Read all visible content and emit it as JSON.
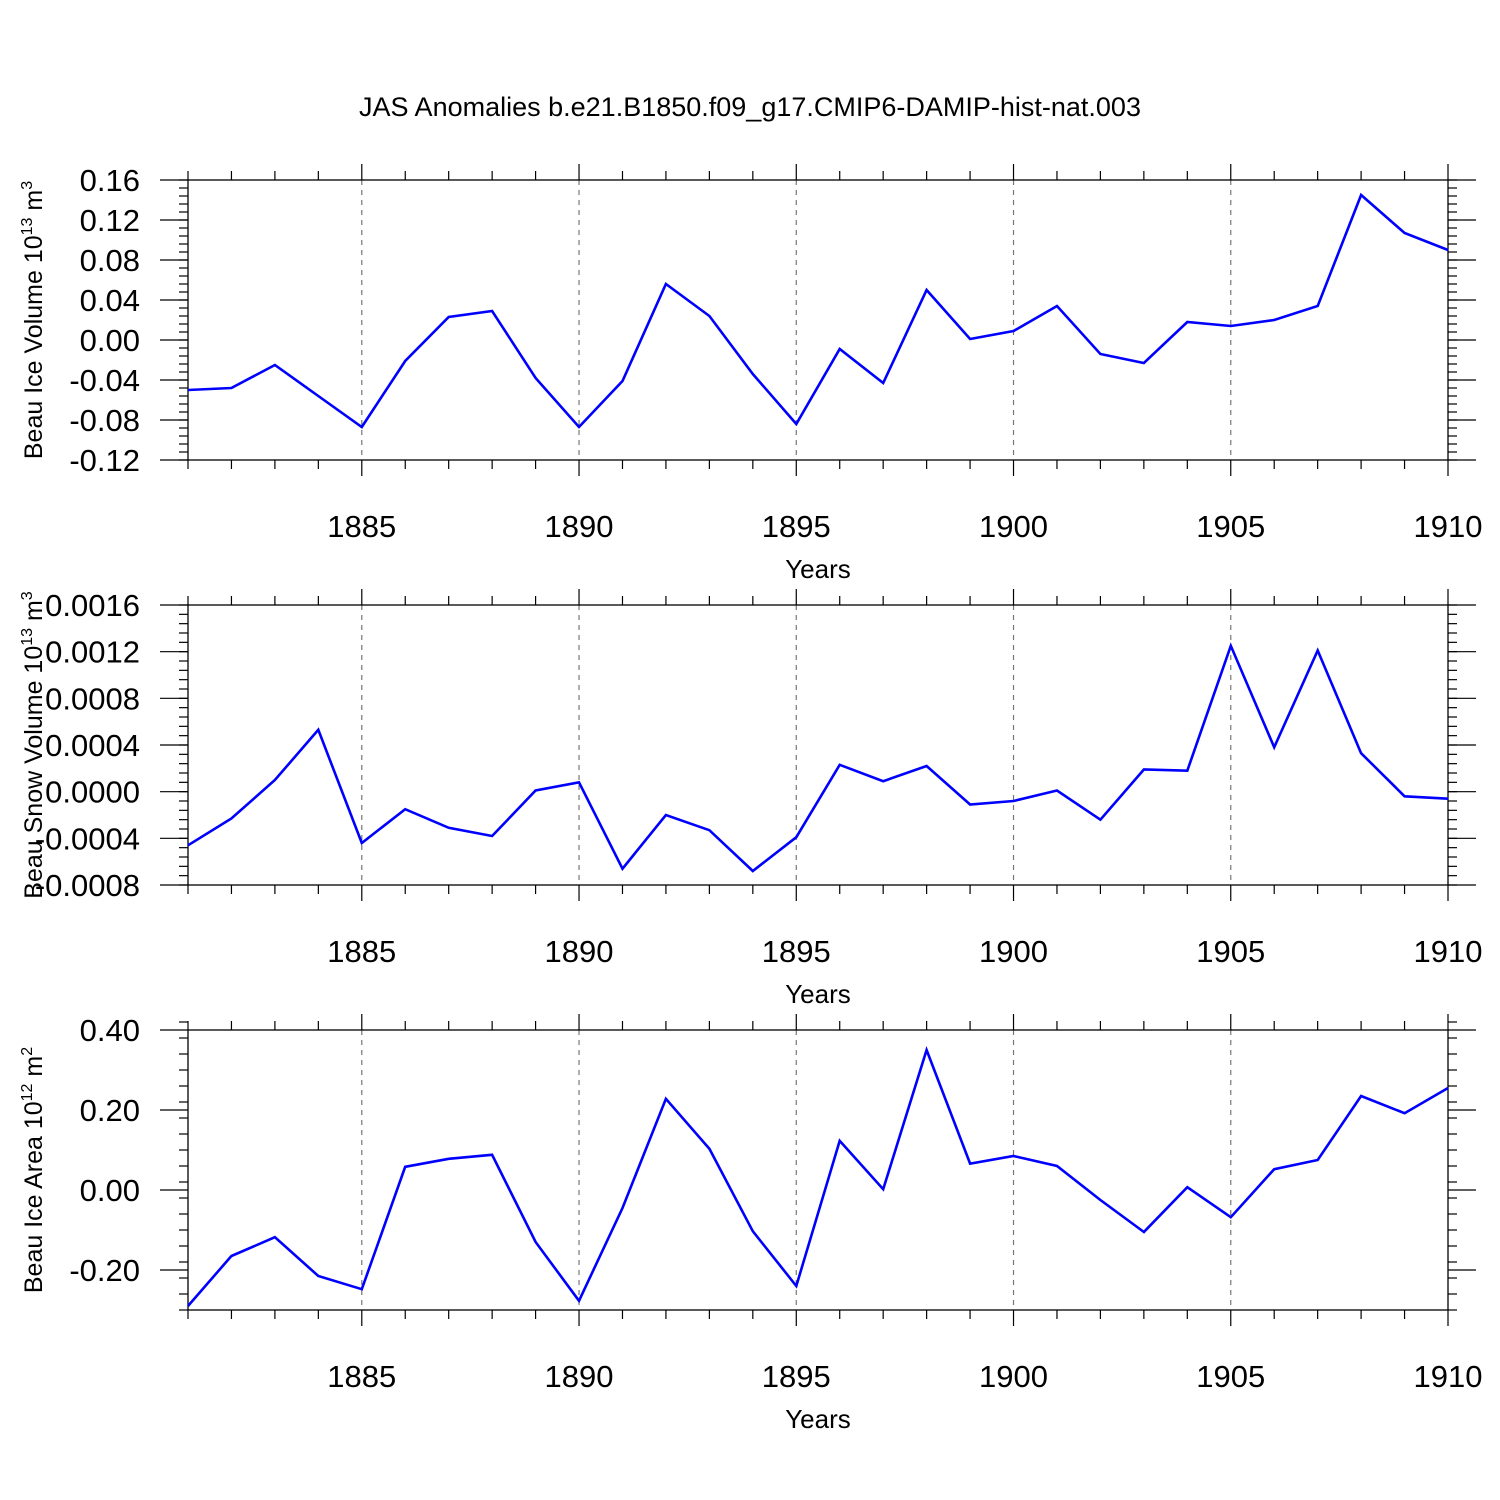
{
  "title": "JAS Anomalies b.e21.B1850.f09_g17.CMIP6-DAMIP-hist-nat.003",
  "chart_data": [
    {
      "type": "line",
      "id": "ice-volume",
      "ylabel_main": "Beau Ice Volume 10",
      "ylabel_exp": "13",
      "ylabel_unit": " m",
      "ylabel_unit_exp": "3",
      "xlabel": "Years",
      "xlim": [
        1881,
        1910
      ],
      "ylim": [
        -0.12,
        0.16
      ],
      "yticks": [
        -0.12,
        -0.08,
        -0.04,
        0.0,
        0.04,
        0.08,
        0.12,
        0.16
      ],
      "ytick_labels": [
        "-0.12",
        "-0.08",
        "-0.04",
        "0.00",
        "0.04",
        "0.08",
        "0.12",
        "0.16"
      ],
      "yminor_step": 0.008,
      "xticks": [
        1885,
        1890,
        1895,
        1900,
        1905,
        1910
      ],
      "xtick_labels": [
        "1885",
        "1890",
        "1895",
        "1900",
        "1905",
        "1910"
      ],
      "x": [
        1881,
        1882,
        1883,
        1884,
        1885,
        1886,
        1887,
        1888,
        1889,
        1890,
        1891,
        1892,
        1893,
        1894,
        1895,
        1896,
        1897,
        1898,
        1899,
        1900,
        1901,
        1902,
        1903,
        1904,
        1905,
        1906,
        1907,
        1908,
        1909,
        1910
      ],
      "values": [
        -0.05,
        -0.048,
        -0.025,
        -0.056,
        -0.087,
        -0.021,
        0.023,
        0.029,
        -0.038,
        -0.087,
        -0.041,
        0.056,
        0.024,
        -0.034,
        -0.084,
        -0.009,
        -0.043,
        0.05,
        0.001,
        0.009,
        0.034,
        -0.014,
        -0.023,
        0.018,
        0.014,
        0.02,
        0.034,
        0.145,
        0.107,
        0.09
      ]
    },
    {
      "type": "line",
      "id": "snow-volume",
      "ylabel_main": "Beau Snow Volume 10",
      "ylabel_exp": "13",
      "ylabel_unit": " m",
      "ylabel_unit_exp": "3",
      "xlabel": "Years",
      "xlim": [
        1881,
        1910
      ],
      "ylim": [
        -0.0008,
        0.0016
      ],
      "yticks": [
        -0.0008,
        -0.0004,
        0.0,
        0.0004,
        0.0008,
        0.0012,
        0.0016
      ],
      "ytick_labels": [
        "-0.0008",
        "-0.0004",
        "0.0000",
        "0.0004",
        "0.0008",
        "0.0012",
        "0.0016"
      ],
      "yminor_step": 8e-05,
      "xticks": [
        1885,
        1890,
        1895,
        1900,
        1905,
        1910
      ],
      "xtick_labels": [
        "1885",
        "1890",
        "1895",
        "1900",
        "1905",
        "1910"
      ],
      "x": [
        1881,
        1882,
        1883,
        1884,
        1885,
        1886,
        1887,
        1888,
        1889,
        1890,
        1891,
        1892,
        1893,
        1894,
        1895,
        1896,
        1897,
        1898,
        1899,
        1900,
        1901,
        1902,
        1903,
        1904,
        1905,
        1906,
        1907,
        1908,
        1909,
        1910
      ],
      "values": [
        -0.00046,
        -0.00023,
        0.0001,
        0.00053,
        -0.00044,
        -0.00015,
        -0.00031,
        -0.00038,
        1e-05,
        8e-05,
        -0.00066,
        -0.0002,
        -0.00033,
        -0.00068,
        -0.00039,
        0.00023,
        9e-05,
        0.00022,
        -0.00011,
        -8e-05,
        1e-05,
        -0.00024,
        0.00019,
        0.00018,
        0.00125,
        0.00038,
        0.00121,
        0.00033,
        -4e-05,
        -6e-05
      ]
    },
    {
      "type": "line",
      "id": "ice-area",
      "ylabel_main": "Beau Ice Area 10",
      "ylabel_exp": "12",
      "ylabel_unit": " m",
      "ylabel_unit_exp": "2",
      "xlabel": "Years",
      "xlim": [
        1881,
        1910
      ],
      "ylim": [
        -0.3,
        0.4
      ],
      "yticks": [
        -0.2,
        0.0,
        0.2,
        0.4
      ],
      "ytick_labels": [
        "-0.20",
        "0.00",
        "0.20",
        "0.40"
      ],
      "yminor_step": 0.04,
      "xticks": [
        1885,
        1890,
        1895,
        1900,
        1905,
        1910
      ],
      "xtick_labels": [
        "1885",
        "1890",
        "1895",
        "1900",
        "1905",
        "1910"
      ],
      "x": [
        1881,
        1882,
        1883,
        1884,
        1885,
        1886,
        1887,
        1888,
        1889,
        1890,
        1891,
        1892,
        1893,
        1894,
        1895,
        1896,
        1897,
        1898,
        1899,
        1900,
        1901,
        1902,
        1903,
        1904,
        1905,
        1906,
        1907,
        1908,
        1909,
        1910
      ],
      "values": [
        -0.29,
        -0.165,
        -0.118,
        -0.215,
        -0.248,
        0.058,
        0.078,
        0.088,
        -0.13,
        -0.277,
        -0.045,
        0.228,
        0.103,
        -0.103,
        -0.24,
        0.123,
        0.002,
        0.35,
        0.066,
        0.085,
        0.06,
        -0.025,
        -0.105,
        0.007,
        -0.068,
        0.052,
        0.075,
        0.235,
        0.192,
        0.255
      ]
    }
  ]
}
